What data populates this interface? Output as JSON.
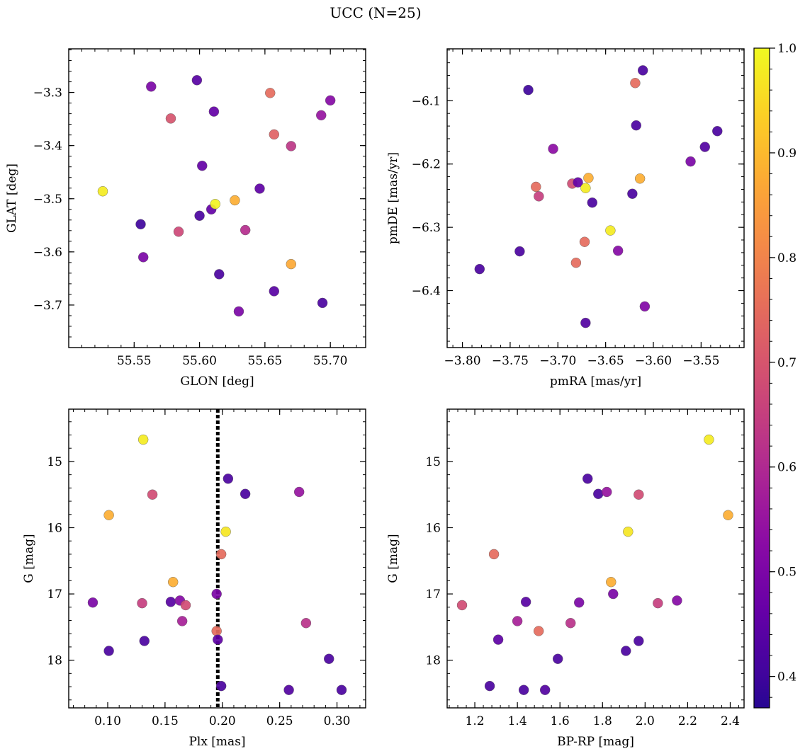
{
  "title": "UCC (N=25)",
  "colormap": {
    "name": "plasma",
    "range": [
      0.37,
      1.0
    ],
    "ticks": [
      0.4,
      0.5,
      0.6,
      0.7,
      0.8,
      0.9,
      1.0
    ],
    "tick_labels": [
      "0.4",
      "0.5",
      "0.6",
      "0.7",
      "0.8",
      "0.9",
      "1.0"
    ]
  },
  "chart_data": [
    {
      "type": "scatter",
      "id": "glon-glat",
      "xlabel": "GLON [deg]",
      "ylabel": "GLAT [deg]",
      "xlim": [
        55.5,
        55.727
      ],
      "ylim": [
        -3.78,
        -3.218
      ],
      "xticks": [
        55.55,
        55.6,
        55.65,
        55.7
      ],
      "xtick_labels": [
        "55.55",
        "55.60",
        "55.65",
        "55.70"
      ],
      "yticks": [
        -3.3,
        -3.4,
        -3.5,
        -3.6,
        -3.7
      ],
      "ytick_labels": [
        "−3.3",
        "−3.4",
        "−3.5",
        "−3.6",
        "−3.7"
      ],
      "points": [
        {
          "x": 55.526,
          "y": -3.486,
          "c": 0.98
        },
        {
          "x": 55.555,
          "y": -3.548,
          "c": 0.4
        },
        {
          "x": 55.557,
          "y": -3.61,
          "c": 0.5
        },
        {
          "x": 55.563,
          "y": -3.289,
          "c": 0.5
        },
        {
          "x": 55.578,
          "y": -3.349,
          "c": 0.7
        },
        {
          "x": 55.584,
          "y": -3.562,
          "c": 0.67
        },
        {
          "x": 55.598,
          "y": -3.277,
          "c": 0.44
        },
        {
          "x": 55.6,
          "y": -3.532,
          "c": 0.42
        },
        {
          "x": 55.602,
          "y": -3.438,
          "c": 0.46
        },
        {
          "x": 55.609,
          "y": -3.52,
          "c": 0.46
        },
        {
          "x": 55.611,
          "y": -3.336,
          "c": 0.46
        },
        {
          "x": 55.612,
          "y": -3.51,
          "c": 0.99
        },
        {
          "x": 55.615,
          "y": -3.642,
          "c": 0.42
        },
        {
          "x": 55.627,
          "y": -3.503,
          "c": 0.88
        },
        {
          "x": 55.63,
          "y": -3.712,
          "c": 0.5
        },
        {
          "x": 55.635,
          "y": -3.559,
          "c": 0.61
        },
        {
          "x": 55.646,
          "y": -3.481,
          "c": 0.45
        },
        {
          "x": 55.654,
          "y": -3.301,
          "c": 0.75
        },
        {
          "x": 55.657,
          "y": -3.674,
          "c": 0.44
        },
        {
          "x": 55.657,
          "y": -3.379,
          "c": 0.73
        },
        {
          "x": 55.67,
          "y": -3.401,
          "c": 0.63
        },
        {
          "x": 55.67,
          "y": -3.623,
          "c": 0.87
        },
        {
          "x": 55.693,
          "y": -3.343,
          "c": 0.55
        },
        {
          "x": 55.694,
          "y": -3.696,
          "c": 0.42
        },
        {
          "x": 55.7,
          "y": -3.315,
          "c": 0.52
        }
      ]
    },
    {
      "type": "scatter",
      "id": "pmra-pmde",
      "xlabel": "pmRA [mas/yr]",
      "ylabel": "pmDE [mas/yr]",
      "xlim": [
        -3.816,
        -3.505
      ],
      "ylim": [
        -6.49,
        -6.018
      ],
      "xticks": [
        -3.8,
        -3.75,
        -3.7,
        -3.65,
        -3.6,
        -3.55
      ],
      "xtick_labels": [
        "−3.80",
        "−3.75",
        "−3.70",
        "−3.65",
        "−3.60",
        "−3.55"
      ],
      "yticks": [
        -6.1,
        -6.2,
        -6.3,
        -6.4
      ],
      "ytick_labels": [
        "−6.1",
        "−6.2",
        "−6.3",
        "−6.4"
      ],
      "points": [
        {
          "x": -3.782,
          "y": -6.366,
          "c": 0.42
        },
        {
          "x": -3.74,
          "y": -6.338,
          "c": 0.42
        },
        {
          "x": -3.731,
          "y": -6.083,
          "c": 0.4
        },
        {
          "x": -3.723,
          "y": -6.236,
          "c": 0.75
        },
        {
          "x": -3.72,
          "y": -6.251,
          "c": 0.65
        },
        {
          "x": -3.705,
          "y": -6.176,
          "c": 0.53
        },
        {
          "x": -3.685,
          "y": -6.231,
          "c": 0.68
        },
        {
          "x": -3.679,
          "y": -6.229,
          "c": 0.46
        },
        {
          "x": -3.681,
          "y": -6.356,
          "c": 0.75
        },
        {
          "x": -3.672,
          "y": -6.323,
          "c": 0.75
        },
        {
          "x": -3.671,
          "y": -6.238,
          "c": 0.98
        },
        {
          "x": -3.668,
          "y": -6.222,
          "c": 0.88
        },
        {
          "x": -3.671,
          "y": -6.451,
          "c": 0.43
        },
        {
          "x": -3.664,
          "y": -6.261,
          "c": 0.42
        },
        {
          "x": -3.645,
          "y": -6.305,
          "c": 0.98
        },
        {
          "x": -3.637,
          "y": -6.337,
          "c": 0.52
        },
        {
          "x": -3.622,
          "y": -6.247,
          "c": 0.42
        },
        {
          "x": -3.619,
          "y": -6.072,
          "c": 0.75
        },
        {
          "x": -3.618,
          "y": -6.139,
          "c": 0.42
        },
        {
          "x": -3.614,
          "y": -6.223,
          "c": 0.88
        },
        {
          "x": -3.611,
          "y": -6.052,
          "c": 0.42
        },
        {
          "x": -3.609,
          "y": -6.425,
          "c": 0.51
        },
        {
          "x": -3.561,
          "y": -6.196,
          "c": 0.5
        },
        {
          "x": -3.546,
          "y": -6.173,
          "c": 0.43
        },
        {
          "x": -3.533,
          "y": -6.148,
          "c": 0.42
        }
      ]
    },
    {
      "type": "scatter",
      "id": "plx-g",
      "xlabel": "Plx [mas]",
      "ylabel": "G [mag]",
      "xlim": [
        0.066,
        0.325
      ],
      "ylim": [
        18.72,
        14.21
      ],
      "y_inverted": true,
      "xticks": [
        0.1,
        0.15,
        0.2,
        0.25,
        0.3
      ],
      "xtick_labels": [
        "0.10",
        "0.15",
        "0.20",
        "0.25",
        "0.30"
      ],
      "yticks": [
        15,
        16,
        17,
        18
      ],
      "ytick_labels": [
        "15",
        "16",
        "17",
        "18"
      ],
      "vline_x": 0.196,
      "points": [
        {
          "x": 0.087,
          "y": 17.13,
          "c": 0.5
        },
        {
          "x": 0.101,
          "y": 15.81,
          "c": 0.88
        },
        {
          "x": 0.101,
          "y": 17.86,
          "c": 0.42
        },
        {
          "x": 0.13,
          "y": 17.14,
          "c": 0.65
        },
        {
          "x": 0.131,
          "y": 14.67,
          "c": 0.98
        },
        {
          "x": 0.132,
          "y": 17.71,
          "c": 0.42
        },
        {
          "x": 0.139,
          "y": 15.5,
          "c": 0.68
        },
        {
          "x": 0.155,
          "y": 17.12,
          "c": 0.44
        },
        {
          "x": 0.157,
          "y": 16.82,
          "c": 0.88
        },
        {
          "x": 0.163,
          "y": 17.1,
          "c": 0.52
        },
        {
          "x": 0.165,
          "y": 17.41,
          "c": 0.58
        },
        {
          "x": 0.168,
          "y": 17.17,
          "c": 0.68
        },
        {
          "x": 0.195,
          "y": 17.0,
          "c": 0.5
        },
        {
          "x": 0.195,
          "y": 17.56,
          "c": 0.75
        },
        {
          "x": 0.196,
          "y": 17.69,
          "c": 0.45
        },
        {
          "x": 0.199,
          "y": 16.4,
          "c": 0.75
        },
        {
          "x": 0.199,
          "y": 18.39,
          "c": 0.42
        },
        {
          "x": 0.203,
          "y": 16.06,
          "c": 0.97
        },
        {
          "x": 0.205,
          "y": 15.26,
          "c": 0.42
        },
        {
          "x": 0.22,
          "y": 15.49,
          "c": 0.42
        },
        {
          "x": 0.258,
          "y": 18.45,
          "c": 0.43
        },
        {
          "x": 0.267,
          "y": 15.46,
          "c": 0.55
        },
        {
          "x": 0.273,
          "y": 17.44,
          "c": 0.62
        },
        {
          "x": 0.293,
          "y": 17.98,
          "c": 0.42
        },
        {
          "x": 0.304,
          "y": 18.45,
          "c": 0.42
        }
      ]
    },
    {
      "type": "scatter",
      "id": "bprp-g",
      "xlabel": "BP-RP [mag]",
      "ylabel": "G [mag]",
      "xlim": [
        1.07,
        2.465
      ],
      "ylim": [
        18.72,
        14.21
      ],
      "y_inverted": true,
      "xticks": [
        1.2,
        1.4,
        1.6,
        1.8,
        2.0,
        2.2,
        2.4
      ],
      "xtick_labels": [
        "1.2",
        "1.4",
        "1.6",
        "1.8",
        "2.0",
        "2.2",
        "2.4"
      ],
      "yticks": [
        15,
        16,
        17,
        18
      ],
      "ytick_labels": [
        "15",
        "16",
        "17",
        "18"
      ],
      "points": [
        {
          "x": 1.14,
          "y": 17.17,
          "c": 0.68
        },
        {
          "x": 1.27,
          "y": 18.39,
          "c": 0.42
        },
        {
          "x": 1.29,
          "y": 16.4,
          "c": 0.75
        },
        {
          "x": 1.31,
          "y": 17.69,
          "c": 0.45
        },
        {
          "x": 1.4,
          "y": 17.41,
          "c": 0.58
        },
        {
          "x": 1.43,
          "y": 18.45,
          "c": 0.42
        },
        {
          "x": 1.44,
          "y": 17.12,
          "c": 0.44
        },
        {
          "x": 1.5,
          "y": 17.56,
          "c": 0.75
        },
        {
          "x": 1.53,
          "y": 18.45,
          "c": 0.43
        },
        {
          "x": 1.59,
          "y": 17.98,
          "c": 0.42
        },
        {
          "x": 1.65,
          "y": 17.44,
          "c": 0.62
        },
        {
          "x": 1.69,
          "y": 17.13,
          "c": 0.5
        },
        {
          "x": 1.73,
          "y": 15.26,
          "c": 0.42
        },
        {
          "x": 1.78,
          "y": 15.49,
          "c": 0.42
        },
        {
          "x": 1.82,
          "y": 15.46,
          "c": 0.55
        },
        {
          "x": 1.84,
          "y": 16.82,
          "c": 0.88
        },
        {
          "x": 1.85,
          "y": 17.0,
          "c": 0.5
        },
        {
          "x": 1.91,
          "y": 17.86,
          "c": 0.42
        },
        {
          "x": 1.92,
          "y": 16.06,
          "c": 0.97
        },
        {
          "x": 1.97,
          "y": 15.5,
          "c": 0.68
        },
        {
          "x": 1.97,
          "y": 17.71,
          "c": 0.42
        },
        {
          "x": 2.06,
          "y": 17.14,
          "c": 0.65
        },
        {
          "x": 2.15,
          "y": 17.1,
          "c": 0.52
        },
        {
          "x": 2.3,
          "y": 14.67,
          "c": 0.98
        },
        {
          "x": 2.39,
          "y": 15.81,
          "c": 0.88
        }
      ]
    }
  ]
}
